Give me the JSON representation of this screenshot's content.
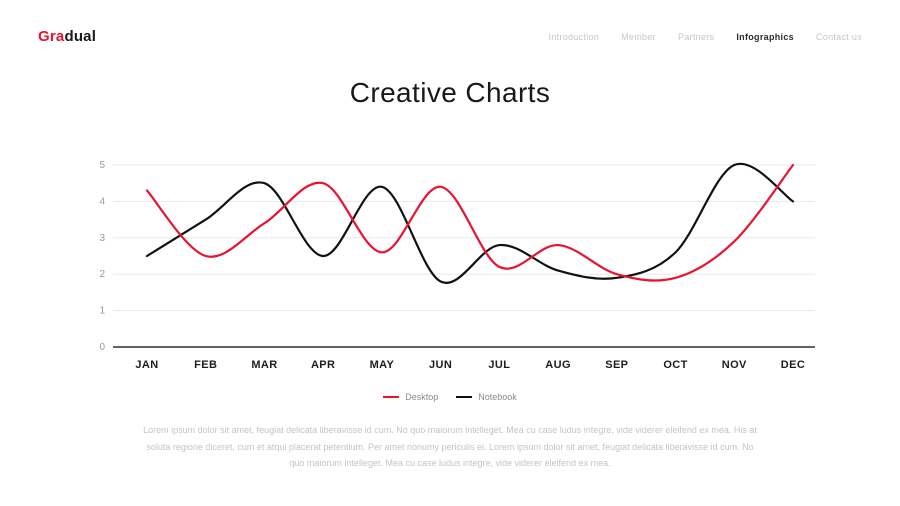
{
  "header": {
    "logo": {
      "part1": "Gra",
      "part2": "dual"
    },
    "nav": {
      "items": [
        {
          "label": "Introduction",
          "active": false
        },
        {
          "label": "Member",
          "active": false
        },
        {
          "label": "Partners",
          "active": false
        },
        {
          "label": "Infographics",
          "active": true
        },
        {
          "label": "Contact us",
          "active": false
        }
      ]
    }
  },
  "title": "Creative Charts",
  "chart_data": {
    "type": "line",
    "categories": [
      "JAN",
      "FEB",
      "MAR",
      "APR",
      "MAY",
      "JUN",
      "JUL",
      "AUG",
      "SEP",
      "OCT",
      "NOV",
      "DEC"
    ],
    "series": [
      {
        "name": "Desktop",
        "color": "#e8142f",
        "values": [
          4.3,
          2.5,
          3.4,
          4.5,
          2.6,
          4.4,
          2.2,
          2.8,
          2.0,
          1.9,
          2.9,
          5.0
        ]
      },
      {
        "name": "Notebook",
        "color": "#111111",
        "values": [
          2.5,
          3.5,
          4.5,
          2.5,
          4.4,
          1.8,
          2.8,
          2.1,
          1.9,
          2.6,
          5.0,
          4.0
        ]
      }
    ],
    "title": "Creative Charts",
    "xlabel": "",
    "ylabel": "",
    "ylim": [
      0,
      5
    ],
    "yticks": [
      0,
      1,
      2,
      3,
      4,
      5
    ],
    "grid": true,
    "legend_position": "bottom"
  },
  "colors": {
    "accent": "#e8142f",
    "dark": "#111111",
    "grid": "#e8e8e8",
    "axis": "#2f2f2f",
    "tick_label": "#9a9a9a",
    "month_label": "#1d1d1d"
  },
  "description": "Lorem ipsum dolor sit amet, feugiat delicata liberavisse id cum. No quo maiorum intelleget. Mea cu case ludus integre, vide viderer eleifend ex mea. His at soluta regione diceret, cum et atqui placerat petentium. Per amet nonumy periculis ei. Lorem ipsum dolor sit amet, feugiat delicata liberavisse id cum. No quo maiorum intelleget. Mea cu case ludus integre, vide viderer eleifend ex mea."
}
